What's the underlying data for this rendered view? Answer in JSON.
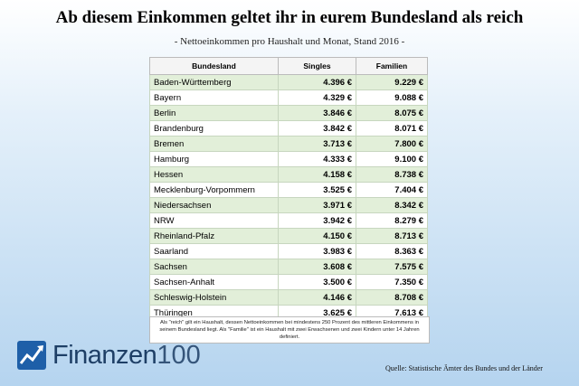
{
  "header": {
    "title": "Ab diesem Einkommen geltet ihr in eurem Bundesland als reich",
    "subtitle": "- Nettoeinkommen pro Haushalt und Monat, Stand 2016 -"
  },
  "table": {
    "columns": [
      "Bundesland",
      "Singles",
      "Familien"
    ],
    "rows": [
      [
        "Baden-Württemberg",
        "4.396 €",
        "9.229 €"
      ],
      [
        "Bayern",
        "4.329 €",
        "9.088 €"
      ],
      [
        "Berlin",
        "3.846 €",
        "8.075 €"
      ],
      [
        "Brandenburg",
        "3.842 €",
        "8.071 €"
      ],
      [
        "Bremen",
        "3.713 €",
        "7.800 €"
      ],
      [
        "Hamburg",
        "4.333 €",
        "9.100 €"
      ],
      [
        "Hessen",
        "4.158 €",
        "8.738 €"
      ],
      [
        "Mecklenburg-Vorpommern",
        "3.525 €",
        "7.404 €"
      ],
      [
        "Niedersachsen",
        "3.971 €",
        "8.342 €"
      ],
      [
        "NRW",
        "3.942 €",
        "8.279 €"
      ],
      [
        "Rheinland-Pfalz",
        "4.150 €",
        "8.713 €"
      ],
      [
        "Saarland",
        "3.983 €",
        "8.363 €"
      ],
      [
        "Sachsen",
        "3.608 €",
        "7.575 €"
      ],
      [
        "Sachsen-Anhalt",
        "3.500 €",
        "7.350 €"
      ],
      [
        "Schleswig-Holstein",
        "4.146 €",
        "8.708 €"
      ],
      [
        "Thüringen",
        "3.625 €",
        "7.613 €"
      ]
    ],
    "footnote": "Als \"reich\" gilt ein Haushalt, dessen Nettoeinkommen bei mindestens 250 Prozent des mittleren Einkommens in seinem Bundesland liegt. Als \"Familie\" ist ein Haushalt mit zwei Erwachsenen und zwei Kindern unter 14 Jahren definiert."
  },
  "logo": {
    "name": "Finanzen",
    "number": "100"
  },
  "source": "Quelle: Statistische Ämter des Bundes und der Länder"
}
